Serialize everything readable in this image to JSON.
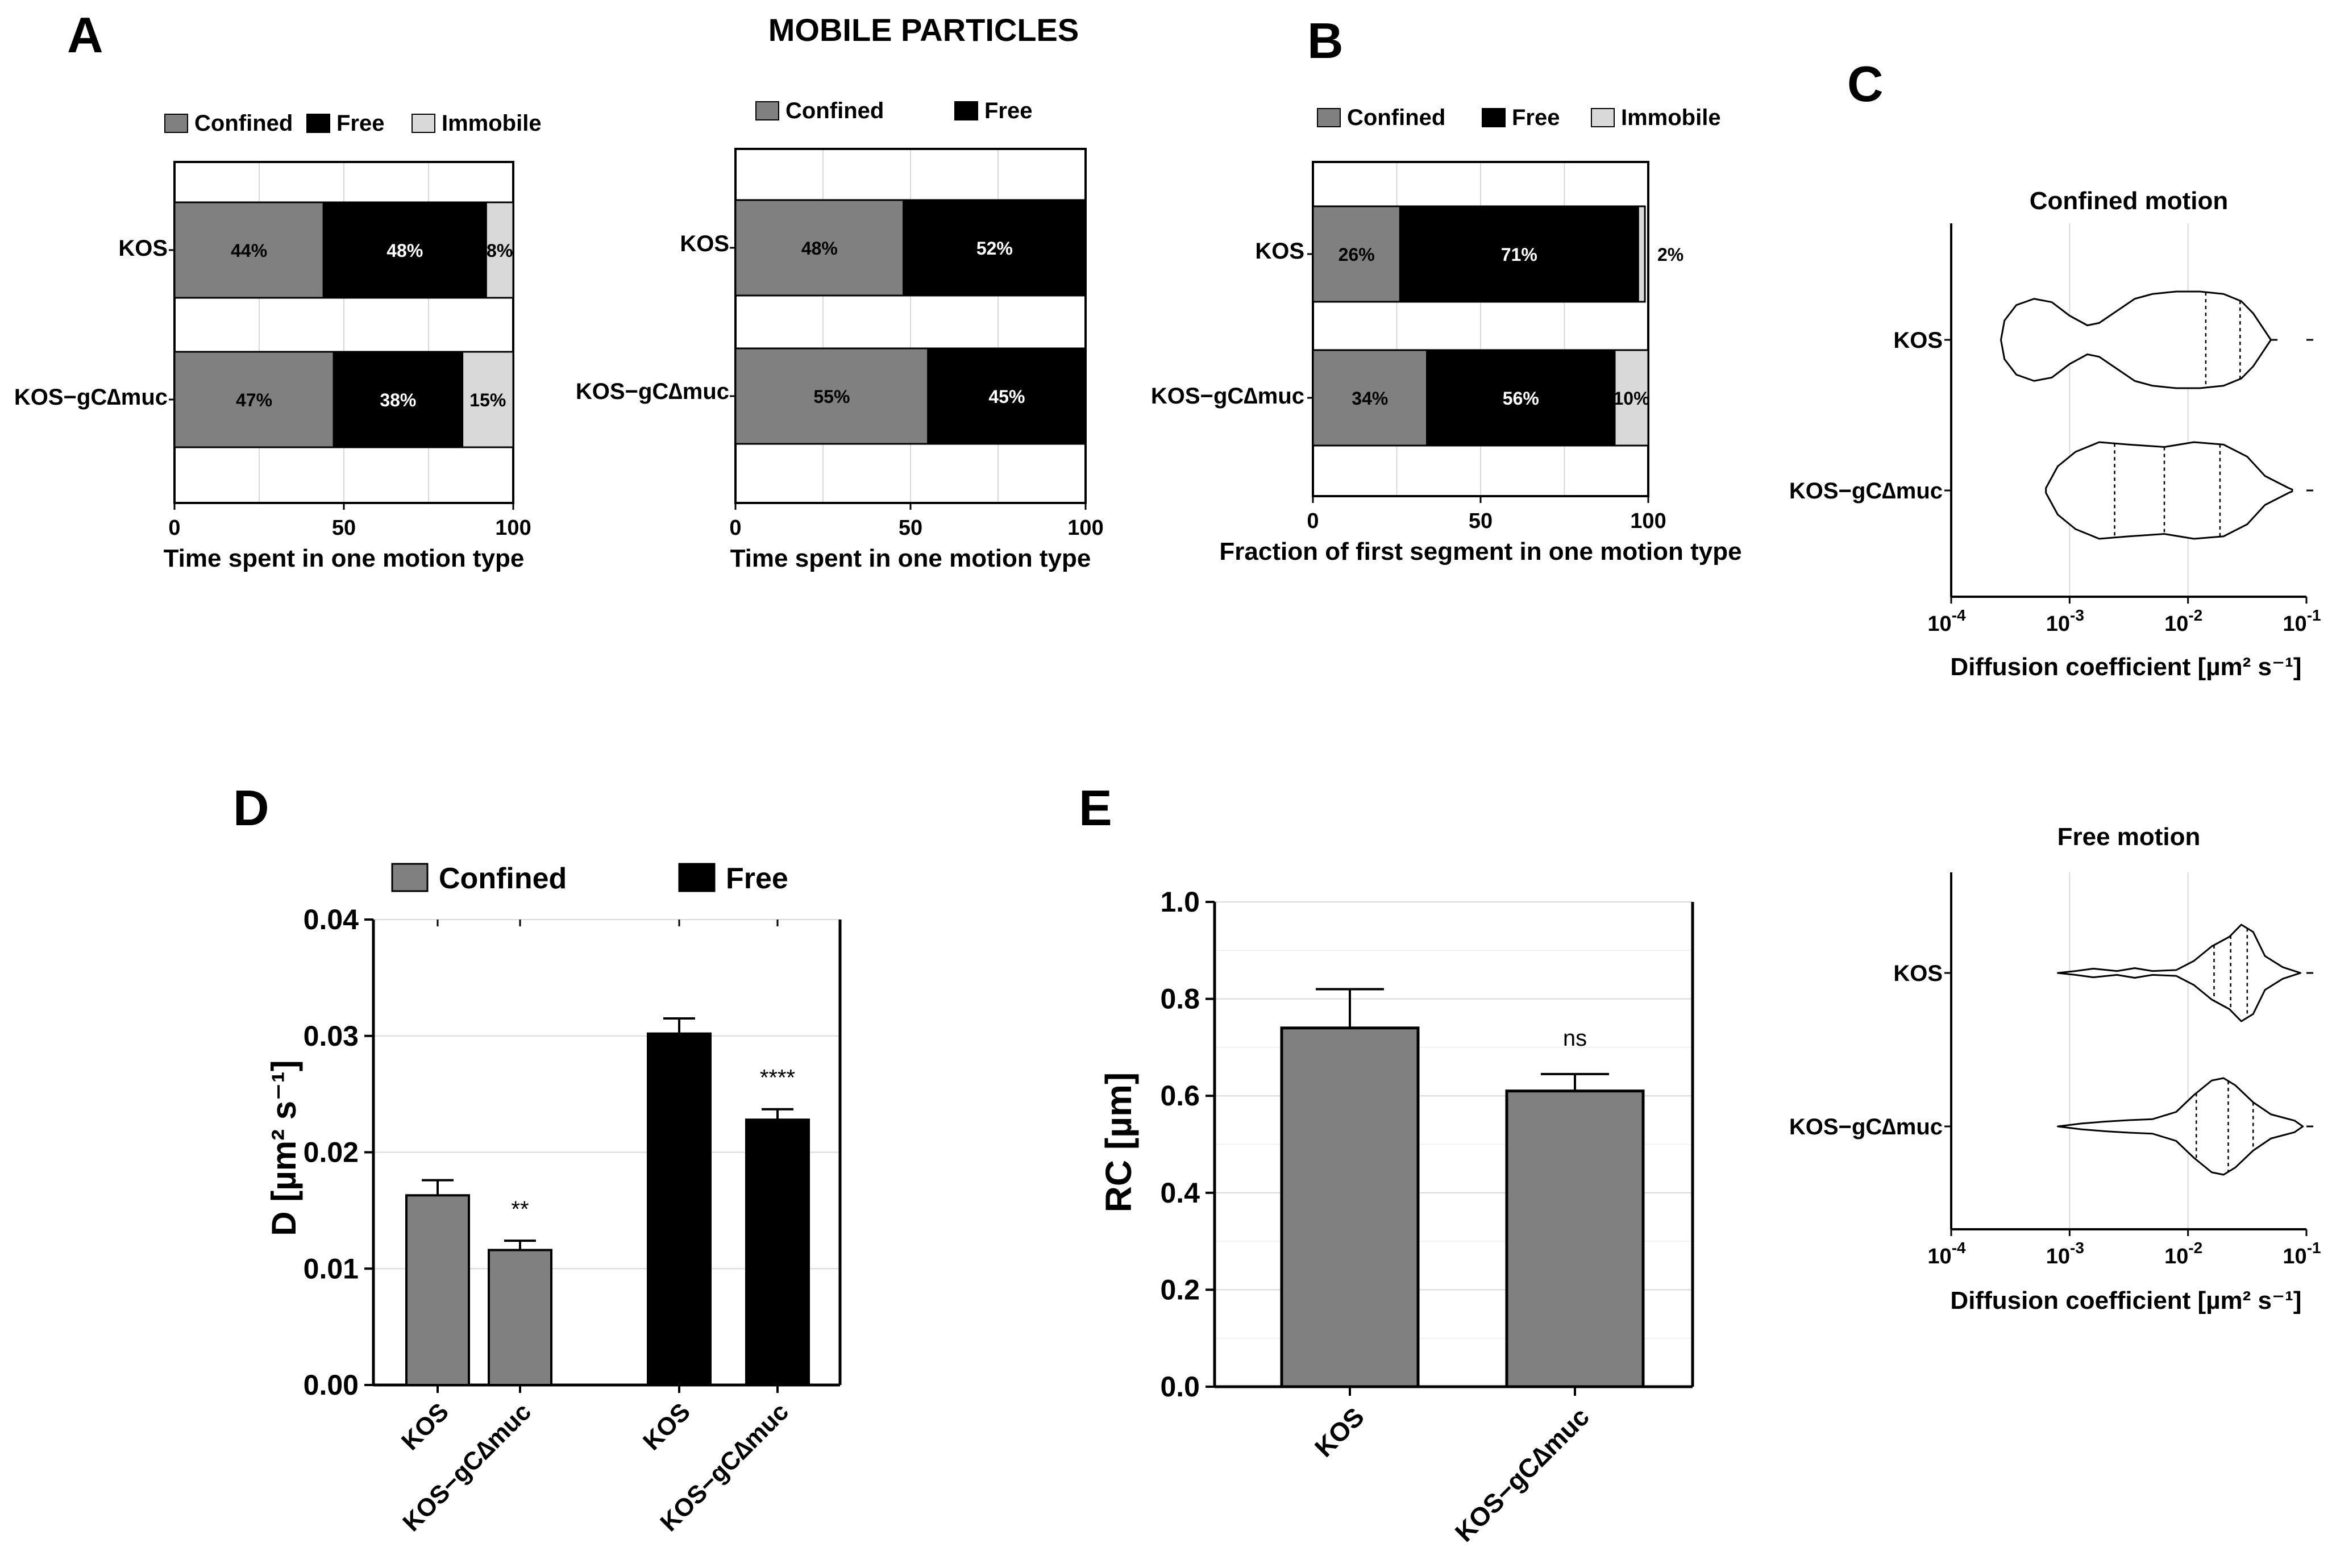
{
  "figure_title": "MOBILE  PARTICLES",
  "panel_labels": {
    "a": "A",
    "b": "B",
    "c": "C",
    "d": "D",
    "e": "E"
  },
  "colors": {
    "confined": "#808080",
    "free": "#000000",
    "immobile": "#d9d9d9",
    "grid": "#d9d9d9"
  },
  "chart_data": [
    {
      "id": "A1",
      "type": "bar",
      "orientation": "horizontal",
      "stacked": true,
      "title": "",
      "xlabel": "Time spent in one motion type",
      "ylabel": "",
      "xlim": [
        0,
        100
      ],
      "xticks": [
        "0",
        "50",
        "100"
      ],
      "categories": [
        "KOS",
        "KOS−gC∆muc"
      ],
      "legend": [
        "Confined",
        "Free",
        "Immobile"
      ],
      "series": [
        {
          "name": "Confined",
          "values": [
            44,
            47
          ],
          "labels": [
            "44%",
            "47%"
          ]
        },
        {
          "name": "Free",
          "values": [
            48,
            38
          ],
          "labels": [
            "48%",
            "38%"
          ]
        },
        {
          "name": "Immobile",
          "values": [
            8,
            15
          ],
          "labels": [
            "8%",
            "15%"
          ]
        }
      ]
    },
    {
      "id": "A2",
      "type": "bar",
      "orientation": "horizontal",
      "stacked": true,
      "title": "",
      "xlabel": "Time spent in one motion type",
      "ylabel": "",
      "xlim": [
        0,
        100
      ],
      "xticks": [
        "0",
        "50",
        "100"
      ],
      "categories": [
        "KOS",
        "KOS−gC∆muc"
      ],
      "legend": [
        "Confined",
        "Free"
      ],
      "series": [
        {
          "name": "Confined",
          "values": [
            48,
            55
          ],
          "labels": [
            "48%",
            "55%"
          ]
        },
        {
          "name": "Free",
          "values": [
            52,
            45
          ],
          "labels": [
            "52%",
            "45%"
          ]
        }
      ]
    },
    {
      "id": "B",
      "type": "bar",
      "orientation": "horizontal",
      "stacked": true,
      "title": "",
      "xlabel": "Fraction of first segment in one motion type",
      "ylabel": "",
      "xlim": [
        0,
        100
      ],
      "xticks": [
        "0",
        "50",
        "100"
      ],
      "categories": [
        "KOS",
        "KOS−gC∆muc"
      ],
      "legend": [
        "Confined",
        "Free",
        "Immobile"
      ],
      "series": [
        {
          "name": "Confined",
          "values": [
            26,
            34
          ],
          "labels": [
            "26%",
            "34%"
          ]
        },
        {
          "name": "Free",
          "values": [
            71,
            56
          ],
          "labels": [
            "71%",
            "56%"
          ]
        },
        {
          "name": "Immobile",
          "values": [
            2,
            10
          ],
          "labels": [
            "2%",
            "10%"
          ]
        }
      ]
    },
    {
      "id": "C1",
      "type": "violin",
      "title": "Confined motion",
      "xlabel": "Diffusion coefficient [µm² s⁻¹]",
      "xscale": "log",
      "xlim": [
        0.0001,
        0.1
      ],
      "xticks": [
        {
          "b": "10",
          "e": "-4"
        },
        {
          "b": "10",
          "e": "-3"
        },
        {
          "b": "10",
          "e": "-2"
        },
        {
          "b": "10",
          "e": "-1"
        }
      ],
      "categories": [
        "KOS",
        "KOS−gC∆muc"
      ],
      "violins": [
        {
          "name": "KOS",
          "profile": [
            [
              -3.58,
              0
            ],
            [
              -3.55,
              0.4
            ],
            [
              -3.45,
              0.72
            ],
            [
              -3.3,
              0.85
            ],
            [
              -3.15,
              0.78
            ],
            [
              -3.0,
              0.5
            ],
            [
              -2.85,
              0.3
            ],
            [
              -2.75,
              0.35
            ],
            [
              -2.6,
              0.6
            ],
            [
              -2.45,
              0.85
            ],
            [
              -2.3,
              0.95
            ],
            [
              -2.1,
              1.0
            ],
            [
              -1.9,
              1.0
            ],
            [
              -1.7,
              0.95
            ],
            [
              -1.55,
              0.8
            ],
            [
              -1.45,
              0.55
            ],
            [
              -1.3,
              0
            ],
            [
              -1.25,
              0
            ]
          ],
          "quartiles": [
            -1.85,
            -1.56
          ]
        },
        {
          "name": "KOS−gC∆muc",
          "profile": [
            [
              -3.2,
              0.05
            ],
            [
              -3.1,
              0.5
            ],
            [
              -2.95,
              0.8
            ],
            [
              -2.75,
              1.0
            ],
            [
              -2.5,
              0.95
            ],
            [
              -2.2,
              0.9
            ],
            [
              -1.95,
              1.0
            ],
            [
              -1.7,
              0.95
            ],
            [
              -1.5,
              0.7
            ],
            [
              -1.35,
              0.3
            ],
            [
              -1.15,
              0.05
            ],
            [
              -1.12,
              0.02
            ]
          ],
          "quartiles": [
            -2.62,
            -2.2,
            -1.73
          ]
        }
      ]
    },
    {
      "id": "C2",
      "type": "violin",
      "title": "Free motion",
      "xlabel": "Diffusion coefficient [µm² s⁻¹]",
      "xscale": "log",
      "xlim": [
        0.0001,
        0.1
      ],
      "xticks": [
        {
          "b": "10",
          "e": "-4"
        },
        {
          "b": "10",
          "e": "-3"
        },
        {
          "b": "10",
          "e": "-2"
        },
        {
          "b": "10",
          "e": "-1"
        }
      ],
      "categories": [
        "KOS",
        "KOS−gC∆muc"
      ],
      "violins": [
        {
          "name": "KOS",
          "profile": [
            [
              -3.1,
              0
            ],
            [
              -2.95,
              0.04
            ],
            [
              -2.8,
              0.09
            ],
            [
              -2.6,
              0.04
            ],
            [
              -2.45,
              0.1
            ],
            [
              -2.3,
              0.04
            ],
            [
              -2.1,
              0.06
            ],
            [
              -1.95,
              0.25
            ],
            [
              -1.8,
              0.55
            ],
            [
              -1.65,
              0.75
            ],
            [
              -1.55,
              1.0
            ],
            [
              -1.45,
              0.85
            ],
            [
              -1.35,
              0.35
            ],
            [
              -1.2,
              0.12
            ],
            [
              -1.05,
              0
            ]
          ],
          "quartiles": [
            -1.78,
            -1.64,
            -1.5
          ]
        },
        {
          "name": "KOS−gC∆muc",
          "profile": [
            [
              -3.1,
              0
            ],
            [
              -2.9,
              0.06
            ],
            [
              -2.7,
              0.1
            ],
            [
              -2.5,
              0.13
            ],
            [
              -2.3,
              0.15
            ],
            [
              -2.1,
              0.3
            ],
            [
              -1.95,
              0.65
            ],
            [
              -1.8,
              0.95
            ],
            [
              -1.7,
              1.0
            ],
            [
              -1.6,
              0.85
            ],
            [
              -1.45,
              0.5
            ],
            [
              -1.3,
              0.25
            ],
            [
              -1.1,
              0.12
            ],
            [
              -1.03,
              0
            ]
          ],
          "quartiles": [
            -1.93,
            -1.66,
            -1.45
          ]
        }
      ]
    },
    {
      "id": "D",
      "type": "bar",
      "title": "",
      "ylabel": "D [µm² s⁻¹]",
      "ylim": [
        0,
        0.04
      ],
      "yticks": [
        "0.00",
        "0.01",
        "0.02",
        "0.03",
        "0.04"
      ],
      "legend": [
        "Confined",
        "Free"
      ],
      "categories": [
        "KOS",
        "KOS−gC∆muc",
        "KOS",
        "KOS−gC∆muc"
      ],
      "groups": [
        "Confined",
        "Confined",
        "Free",
        "Free"
      ],
      "values": [
        0.0163,
        0.0116,
        0.0302,
        0.0228
      ],
      "errors": [
        0.0013,
        0.0008,
        0.0013,
        0.0009
      ],
      "significance": [
        "",
        "**",
        "",
        "****"
      ]
    },
    {
      "id": "E",
      "type": "bar",
      "title": "",
      "ylabel": "RC [µm]",
      "ylim": [
        0,
        1.0
      ],
      "yticks": [
        "0.0",
        "0.2",
        "0.4",
        "0.6",
        "0.8",
        "1.0"
      ],
      "categories": [
        "KOS",
        "KOS−gC∆muc"
      ],
      "values": [
        0.74,
        0.61
      ],
      "errors": [
        0.08,
        0.035
      ],
      "significance": [
        "",
        "ns"
      ]
    }
  ]
}
